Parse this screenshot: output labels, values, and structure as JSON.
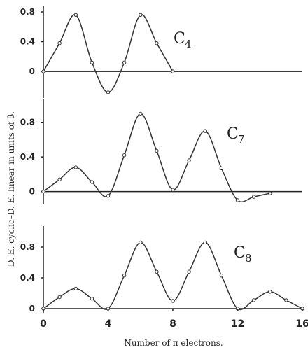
{
  "chart_data": {
    "type": "line",
    "ylabel": "D. E. cyclic–D. E. linear in units of β.",
    "xlabel": "Number of π electrons.",
    "xticks": [
      "0",
      "4",
      "8",
      "12",
      "16"
    ],
    "panels": [
      {
        "label": "C",
        "sub": "4",
        "xlim": [
          0,
          16
        ],
        "ylim": [
          -0.3,
          0.8
        ],
        "yticks": [
          0,
          0.4,
          0.8
        ],
        "ytick_labels": [
          "0",
          "0.4",
          "0.8"
        ],
        "x": [
          0,
          1,
          2,
          3,
          4,
          5,
          6,
          7,
          8
        ],
        "y": [
          0,
          0.38,
          0.76,
          0.12,
          -0.28,
          0.12,
          0.76,
          0.38,
          0
        ]
      },
      {
        "label": "C",
        "sub": "7",
        "xlim": [
          0,
          16
        ],
        "ylim": [
          -0.1,
          1.0
        ],
        "yticks": [
          0,
          0.4,
          0.8
        ],
        "ytick_labels": [
          "0",
          "0.4",
          "0.8"
        ],
        "x": [
          0,
          1,
          2,
          3,
          4,
          5,
          6,
          7,
          8,
          9,
          10,
          11,
          12,
          13,
          14
        ],
        "y": [
          0,
          0.14,
          0.28,
          0.11,
          -0.05,
          0.42,
          0.9,
          0.47,
          0.02,
          0.36,
          0.7,
          0.27,
          -0.1,
          -0.06,
          -0.02
        ]
      },
      {
        "label": "C",
        "sub": "8",
        "xlim": [
          0,
          16
        ],
        "ylim": [
          0,
          1.0
        ],
        "yticks": [
          0,
          0.4,
          0.8
        ],
        "ytick_labels": [
          "0",
          "0.4",
          "0.8"
        ],
        "x": [
          0,
          1,
          2,
          3,
          4,
          5,
          6,
          7,
          8,
          9,
          10,
          11,
          12,
          13,
          14,
          15,
          16
        ],
        "y": [
          0,
          0.15,
          0.26,
          0.13,
          0,
          0.43,
          0.86,
          0.48,
          0.1,
          0.48,
          0.86,
          0.43,
          0,
          0.11,
          0.22,
          0.11,
          0
        ]
      }
    ]
  }
}
